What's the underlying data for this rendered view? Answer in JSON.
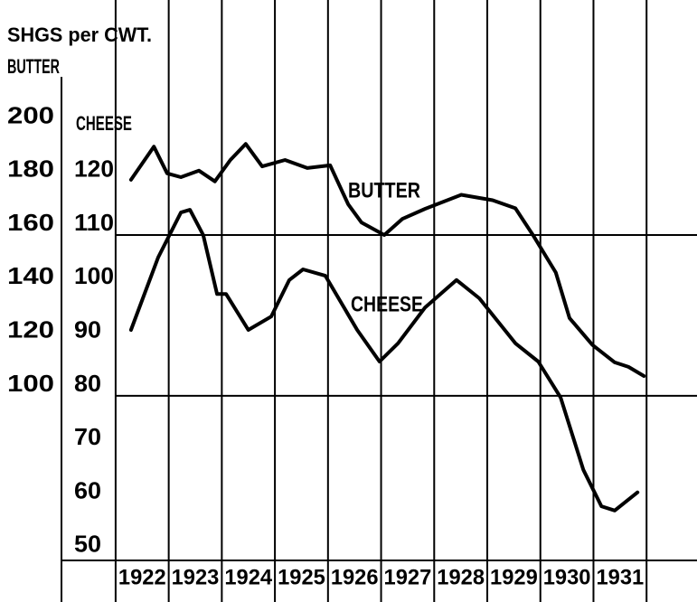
{
  "chart_data": {
    "type": "line",
    "title": "SHGS per CWT.",
    "y2_axis_label": "BUTTER",
    "y_axis_label": "CHEESE",
    "annotations": [
      "BUTTER",
      "CHEESE"
    ],
    "categories": [
      "1922",
      "1923",
      "1924",
      "1925",
      "1926",
      "1927",
      "1928",
      "1929",
      "1930",
      "1931"
    ],
    "xlim": [
      1920.98,
      1932.95
    ],
    "xticks": [
      1922,
      1923,
      1924,
      1925,
      1926,
      1927,
      1928,
      1929,
      1930,
      1931,
      1932
    ],
    "ylim": [
      49.3,
      153
    ],
    "yticks": [
      120,
      110,
      100,
      90,
      80,
      70,
      60,
      50
    ],
    "y2lim": [
      38.6,
      246
    ],
    "y2ticks": [
      200,
      180,
      160,
      140,
      120,
      100
    ],
    "hlines": [
      110,
      80
    ],
    "grid": true,
    "series": [
      {
        "name": "BUTTER",
        "color": "#000000",
        "axis": "y2",
        "x": [
          1922.29,
          1922.72,
          1922.97,
          1923.23,
          1923.57,
          1923.87,
          1924.16,
          1924.45,
          1924.76,
          1925.19,
          1925.61,
          1926.04,
          1926.38,
          1926.63,
          1927.06,
          1927.4,
          1927.83,
          1928.51,
          1929.1,
          1929.53,
          1929.87,
          1930.29,
          1930.55,
          1930.98,
          1931.4,
          1931.66,
          1931.95
        ],
        "values": [
          180.6,
          193,
          183,
          181.6,
          184,
          180,
          188,
          194,
          185.6,
          188,
          185,
          186,
          171.5,
          164.7,
          160,
          166,
          169.8,
          175,
          173,
          170,
          159.7,
          146,
          129,
          119,
          112.5,
          110.8,
          107.4
        ]
      },
      {
        "name": "CHEESE",
        "color": "#000000",
        "x": [
          1922.29,
          1922.8,
          1923.23,
          1923.4,
          1923.65,
          1923.91,
          1924.08,
          1924.5,
          1924.93,
          1925.27,
          1925.53,
          1925.95,
          1926.55,
          1926.97,
          1927.32,
          1927.83,
          1928.42,
          1928.85,
          1929.53,
          1929.96,
          1930.38,
          1930.81,
          1931.15,
          1931.4,
          1931.83
        ],
        "values": [
          92.3,
          105.8,
          114.2,
          114.7,
          110,
          99,
          99,
          92.3,
          94.8,
          101.6,
          103.6,
          102.4,
          92.3,
          86.4,
          89.8,
          96.5,
          101.6,
          98.2,
          89.8,
          86.4,
          79.7,
          66.2,
          59.4,
          58.6,
          62
        ]
      }
    ]
  }
}
